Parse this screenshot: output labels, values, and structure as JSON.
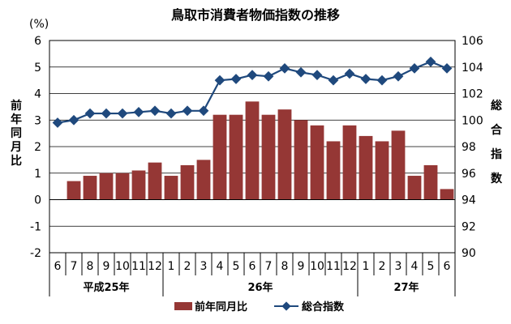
{
  "chart_data": {
    "type": "bar+line",
    "title": "鳥取市消費者物価指数の推移",
    "left_unit": "(%)",
    "ylabel_left": "前年同月比",
    "ylabel_right": "総合指数",
    "ylim_left": [
      -2,
      6
    ],
    "ylim_right": [
      90,
      106
    ],
    "yticks_left": [
      "-2",
      "-1",
      "0",
      "1",
      "2",
      "3",
      "4",
      "5",
      "6"
    ],
    "yticks_right": [
      "90",
      "92",
      "94",
      "96",
      "98",
      "100",
      "102",
      "104",
      "106"
    ],
    "grid": true,
    "categories": [
      "6",
      "7",
      "8",
      "9",
      "10",
      "11",
      "12",
      "1",
      "2",
      "3",
      "4",
      "5",
      "6",
      "7",
      "8",
      "9",
      "10",
      "11",
      "12",
      "1",
      "2",
      "3",
      "4",
      "5",
      "6"
    ],
    "groups": [
      {
        "label": "平成25年",
        "start": 0,
        "end": 6
      },
      {
        "label": "26年",
        "start": 7,
        "end": 18
      },
      {
        "label": "27年",
        "start": 19,
        "end": 24
      }
    ],
    "series": [
      {
        "name": "前年同月比",
        "type": "bar",
        "axis": "left",
        "color": "#953735",
        "values": [
          null,
          0.7,
          0.9,
          1.0,
          1.0,
          1.1,
          1.4,
          0.9,
          1.3,
          1.5,
          3.2,
          3.2,
          3.7,
          3.2,
          3.4,
          3.0,
          2.8,
          2.2,
          2.8,
          2.4,
          2.2,
          2.6,
          0.9,
          1.3,
          0.4
        ]
      },
      {
        "name": "総合指数",
        "type": "line",
        "axis": "right",
        "color": "#1F497D",
        "values": [
          99.8,
          100.0,
          100.5,
          100.5,
          100.5,
          100.6,
          100.7,
          100.5,
          100.7,
          100.7,
          103.0,
          103.1,
          103.4,
          103.3,
          103.9,
          103.6,
          103.4,
          103.0,
          103.5,
          103.1,
          103.0,
          103.3,
          103.9,
          104.4,
          103.9
        ]
      }
    ],
    "legend_position": "bottom"
  }
}
